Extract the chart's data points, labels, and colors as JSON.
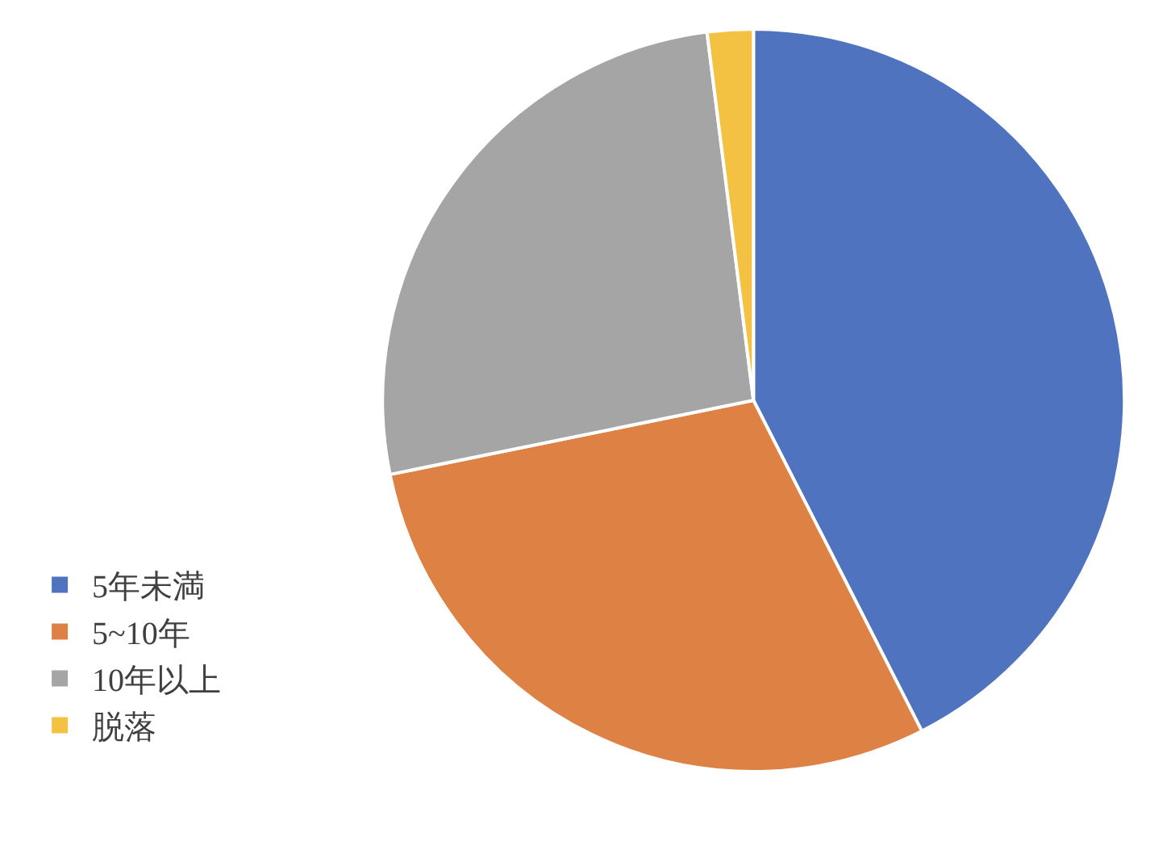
{
  "chart_data": {
    "type": "pie",
    "categories": [
      "5年未満",
      "5~10年",
      "10年以上",
      "脱落"
    ],
    "values": [
      42.5,
      29.3,
      26.2,
      2.0
    ],
    "colors": [
      "#4f73be",
      "#dd8244",
      "#a5a5a5",
      "#f4c243"
    ],
    "legend": "bottom left"
  }
}
